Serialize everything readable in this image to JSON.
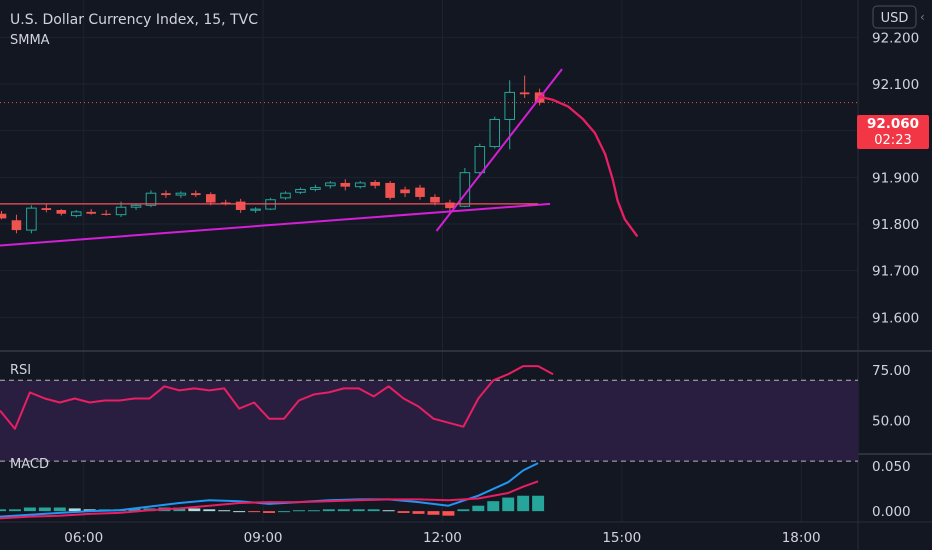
{
  "header": {
    "title": "U.S. Dollar Currency Index, 15, TVC",
    "indicator": "SMMA",
    "currency": "USD",
    "collapse_glyph": "‹"
  },
  "price_badge": {
    "price": "92.060",
    "countdown": "02:23",
    "color": "#f23645"
  },
  "colors": {
    "background": "#131722",
    "up": "#26a69a",
    "down": "#ef5350",
    "trendline": "#d31fd6",
    "forecast": "#e91e63",
    "smma": "#f7525f",
    "rsi_line": "#e91e63",
    "rsi_band": "#2a1e40",
    "macd_line": "#2196f3",
    "signal_line": "#e91e63"
  },
  "chart_data": [
    {
      "type": "candlestick",
      "title": "U.S. Dollar Currency Index, 15, TVC",
      "ylim": [
        91.53,
        92.28
      ],
      "yticks": [
        91.6,
        91.7,
        91.8,
        91.9,
        92.0,
        92.1,
        92.2
      ],
      "ytick_labels": [
        "91.600",
        "91.700",
        "91.800",
        "91.900",
        "92.000",
        "92.100",
        "92.200"
      ],
      "xlim": [
        4.6,
        18.85
      ],
      "xticks": [
        6,
        9,
        12,
        15,
        18
      ],
      "xtick_labels": [
        "06:00",
        "09:00",
        "12:00",
        "15:00",
        "18:00"
      ],
      "candles": [
        {
          "t": 4.625,
          "o": 91.822,
          "h": 91.828,
          "l": 91.81,
          "c": 91.812
        },
        {
          "t": 4.875,
          "o": 91.808,
          "h": 91.82,
          "l": 91.78,
          "c": 91.787
        },
        {
          "t": 5.125,
          "o": 91.787,
          "h": 91.84,
          "l": 91.78,
          "c": 91.834
        },
        {
          "t": 5.375,
          "o": 91.834,
          "h": 91.842,
          "l": 91.825,
          "c": 91.83
        },
        {
          "t": 5.625,
          "o": 91.83,
          "h": 91.832,
          "l": 91.818,
          "c": 91.822
        },
        {
          "t": 5.875,
          "o": 91.818,
          "h": 91.83,
          "l": 91.814,
          "c": 91.826
        },
        {
          "t": 6.125,
          "o": 91.826,
          "h": 91.832,
          "l": 91.82,
          "c": 91.822
        },
        {
          "t": 6.375,
          "o": 91.822,
          "h": 91.83,
          "l": 91.818,
          "c": 91.82
        },
        {
          "t": 6.625,
          "o": 91.82,
          "h": 91.848,
          "l": 91.815,
          "c": 91.836
        },
        {
          "t": 6.875,
          "o": 91.836,
          "h": 91.844,
          "l": 91.83,
          "c": 91.84
        },
        {
          "t": 7.125,
          "o": 91.84,
          "h": 91.872,
          "l": 91.836,
          "c": 91.866
        },
        {
          "t": 7.375,
          "o": 91.866,
          "h": 91.872,
          "l": 91.856,
          "c": 91.862
        },
        {
          "t": 7.625,
          "o": 91.862,
          "h": 91.87,
          "l": 91.856,
          "c": 91.866
        },
        {
          "t": 7.875,
          "o": 91.866,
          "h": 91.872,
          "l": 91.858,
          "c": 91.862
        },
        {
          "t": 8.125,
          "o": 91.864,
          "h": 91.868,
          "l": 91.84,
          "c": 91.846
        },
        {
          "t": 8.375,
          "o": 91.846,
          "h": 91.852,
          "l": 91.84,
          "c": 91.844
        },
        {
          "t": 8.625,
          "o": 91.848,
          "h": 91.854,
          "l": 91.824,
          "c": 91.83
        },
        {
          "t": 8.875,
          "o": 91.83,
          "h": 91.836,
          "l": 91.824,
          "c": 91.832
        },
        {
          "t": 9.125,
          "o": 91.832,
          "h": 91.856,
          "l": 91.83,
          "c": 91.852
        },
        {
          "t": 9.375,
          "o": 91.856,
          "h": 91.87,
          "l": 91.852,
          "c": 91.866
        },
        {
          "t": 9.625,
          "o": 91.868,
          "h": 91.878,
          "l": 91.864,
          "c": 91.874
        },
        {
          "t": 9.875,
          "o": 91.874,
          "h": 91.884,
          "l": 91.87,
          "c": 91.878
        },
        {
          "t": 10.125,
          "o": 91.882,
          "h": 91.892,
          "l": 91.876,
          "c": 91.888
        },
        {
          "t": 10.375,
          "o": 91.888,
          "h": 91.896,
          "l": 91.872,
          "c": 91.88
        },
        {
          "t": 10.625,
          "o": 91.88,
          "h": 91.892,
          "l": 91.876,
          "c": 91.888
        },
        {
          "t": 10.875,
          "o": 91.89,
          "h": 91.894,
          "l": 91.876,
          "c": 91.882
        },
        {
          "t": 11.125,
          "o": 91.888,
          "h": 91.892,
          "l": 91.852,
          "c": 91.856
        },
        {
          "t": 11.375,
          "o": 91.874,
          "h": 91.88,
          "l": 91.858,
          "c": 91.866
        },
        {
          "t": 11.625,
          "o": 91.878,
          "h": 91.884,
          "l": 91.852,
          "c": 91.858
        },
        {
          "t": 11.875,
          "o": 91.858,
          "h": 91.864,
          "l": 91.84,
          "c": 91.846
        },
        {
          "t": 12.125,
          "o": 91.846,
          "h": 91.852,
          "l": 91.828,
          "c": 91.834
        },
        {
          "t": 12.375,
          "o": 91.838,
          "h": 91.92,
          "l": 91.836,
          "c": 91.91
        },
        {
          "t": 12.625,
          "o": 91.91,
          "h": 91.972,
          "l": 91.905,
          "c": 91.966
        },
        {
          "t": 12.875,
          "o": 91.966,
          "h": 92.03,
          "l": 91.962,
          "c": 92.024
        },
        {
          "t": 13.125,
          "o": 92.024,
          "h": 92.108,
          "l": 91.96,
          "c": 92.082
        },
        {
          "t": 13.375,
          "o": 92.082,
          "h": 92.118,
          "l": 92.07,
          "c": 92.078
        },
        {
          "t": 13.625,
          "o": 92.082,
          "h": 92.09,
          "l": 92.054,
          "c": 92.06
        }
      ],
      "annotations": [
        {
          "type": "trendline",
          "points": [
            [
              4.6,
              91.754
            ],
            [
              13.8,
              91.843
            ]
          ]
        },
        {
          "type": "trendline",
          "points": [
            [
              11.9,
              91.785
            ],
            [
              14.0,
              92.132
            ]
          ]
        },
        {
          "type": "smma",
          "points": [
            [
              4.6,
              91.843
            ],
            [
              13.6,
              91.843
            ]
          ]
        },
        {
          "type": "forecast",
          "points": [
            [
              13.62,
              92.073
            ],
            [
              13.85,
              92.066
            ],
            [
              14.1,
              92.052
            ],
            [
              14.35,
              92.025
            ],
            [
              14.55,
              91.995
            ],
            [
              14.72,
              91.95
            ],
            [
              14.85,
              91.895
            ],
            [
              14.93,
              91.85
            ],
            [
              15.05,
              91.81
            ],
            [
              15.25,
              91.775
            ]
          ]
        }
      ]
    },
    {
      "type": "line",
      "title": "RSI",
      "ylim": [
        34,
        84
      ],
      "yticks": [
        50,
        75
      ],
      "ytick_labels": [
        "50.00",
        "75.00"
      ],
      "levels": [
        70,
        30
      ],
      "points": [
        [
          4.6,
          55
        ],
        [
          4.85,
          46
        ],
        [
          5.1,
          64
        ],
        [
          5.35,
          61
        ],
        [
          5.6,
          59
        ],
        [
          5.85,
          61
        ],
        [
          6.1,
          59
        ],
        [
          6.35,
          60
        ],
        [
          6.6,
          60
        ],
        [
          6.85,
          61
        ],
        [
          7.1,
          61
        ],
        [
          7.35,
          67
        ],
        [
          7.6,
          65
        ],
        [
          7.85,
          66
        ],
        [
          8.1,
          65
        ],
        [
          8.35,
          66
        ],
        [
          8.6,
          56
        ],
        [
          8.85,
          59
        ],
        [
          9.1,
          51
        ],
        [
          9.35,
          51
        ],
        [
          9.6,
          60
        ],
        [
          9.85,
          63
        ],
        [
          10.1,
          64
        ],
        [
          10.35,
          66
        ],
        [
          10.6,
          66
        ],
        [
          10.85,
          62
        ],
        [
          11.1,
          67
        ],
        [
          11.35,
          61
        ],
        [
          11.6,
          57
        ],
        [
          11.85,
          51
        ],
        [
          12.1,
          49
        ],
        [
          12.35,
          47
        ],
        [
          12.6,
          61
        ],
        [
          12.85,
          70
        ],
        [
          13.1,
          73
        ],
        [
          13.35,
          77
        ],
        [
          13.6,
          77
        ],
        [
          13.85,
          73
        ]
      ]
    },
    {
      "type": "bar+line",
      "title": "MACD",
      "ylim": [
        -0.012,
        0.062
      ],
      "yticks": [
        0.0,
        0.05
      ],
      "ytick_labels": [
        "0.000",
        "0.050"
      ],
      "histogram": [
        [
          4.6,
          0.002
        ],
        [
          4.85,
          0.002
        ],
        [
          5.1,
          0.004
        ],
        [
          5.35,
          0.004
        ],
        [
          5.6,
          0.004
        ],
        [
          5.85,
          0.003
        ],
        [
          6.1,
          0.002
        ],
        [
          6.35,
          0.002
        ],
        [
          6.6,
          0.002
        ],
        [
          6.85,
          0.003
        ],
        [
          7.1,
          0.003
        ],
        [
          7.35,
          0.004
        ],
        [
          7.6,
          0.004
        ],
        [
          7.85,
          0.003
        ],
        [
          8.1,
          0.002
        ],
        [
          8.35,
          0.001
        ],
        [
          8.6,
          0.0
        ],
        [
          8.85,
          -0.001
        ],
        [
          9.1,
          -0.002
        ],
        [
          9.35,
          0.0
        ],
        [
          9.6,
          0.001
        ],
        [
          9.85,
          0.001
        ],
        [
          10.1,
          0.002
        ],
        [
          10.35,
          0.002
        ],
        [
          10.6,
          0.002
        ],
        [
          10.85,
          0.002
        ],
        [
          11.1,
          0.001
        ],
        [
          11.35,
          -0.002
        ],
        [
          11.6,
          -0.003
        ],
        [
          11.85,
          -0.004
        ],
        [
          12.1,
          -0.005
        ],
        [
          12.35,
          0.002
        ],
        [
          12.6,
          0.006
        ],
        [
          12.85,
          0.011
        ],
        [
          13.1,
          0.015
        ],
        [
          13.35,
          0.017
        ],
        [
          13.6,
          0.017
        ]
      ],
      "macd": [
        [
          4.6,
          -0.006
        ],
        [
          5.1,
          -0.004
        ],
        [
          5.6,
          -0.002
        ],
        [
          6.1,
          0.0
        ],
        [
          6.6,
          0.001
        ],
        [
          7.1,
          0.005
        ],
        [
          7.6,
          0.009
        ],
        [
          8.1,
          0.012
        ],
        [
          8.6,
          0.011
        ],
        [
          9.1,
          0.008
        ],
        [
          9.6,
          0.01
        ],
        [
          10.1,
          0.012
        ],
        [
          10.6,
          0.013
        ],
        [
          11.1,
          0.013
        ],
        [
          11.6,
          0.01
        ],
        [
          12.1,
          0.006
        ],
        [
          12.6,
          0.017
        ],
        [
          13.1,
          0.032
        ],
        [
          13.35,
          0.045
        ],
        [
          13.6,
          0.053
        ]
      ],
      "signal": [
        [
          4.6,
          -0.008
        ],
        [
          5.1,
          -0.006
        ],
        [
          5.6,
          -0.005
        ],
        [
          6.1,
          -0.003
        ],
        [
          6.6,
          -0.002
        ],
        [
          7.1,
          0.001
        ],
        [
          7.6,
          0.003
        ],
        [
          8.1,
          0.006
        ],
        [
          8.6,
          0.009
        ],
        [
          9.1,
          0.01
        ],
        [
          9.6,
          0.01
        ],
        [
          10.1,
          0.011
        ],
        [
          10.6,
          0.012
        ],
        [
          11.1,
          0.013
        ],
        [
          11.6,
          0.013
        ],
        [
          12.1,
          0.012
        ],
        [
          12.6,
          0.014
        ],
        [
          13.1,
          0.02
        ],
        [
          13.35,
          0.027
        ],
        [
          13.6,
          0.033
        ]
      ]
    }
  ]
}
